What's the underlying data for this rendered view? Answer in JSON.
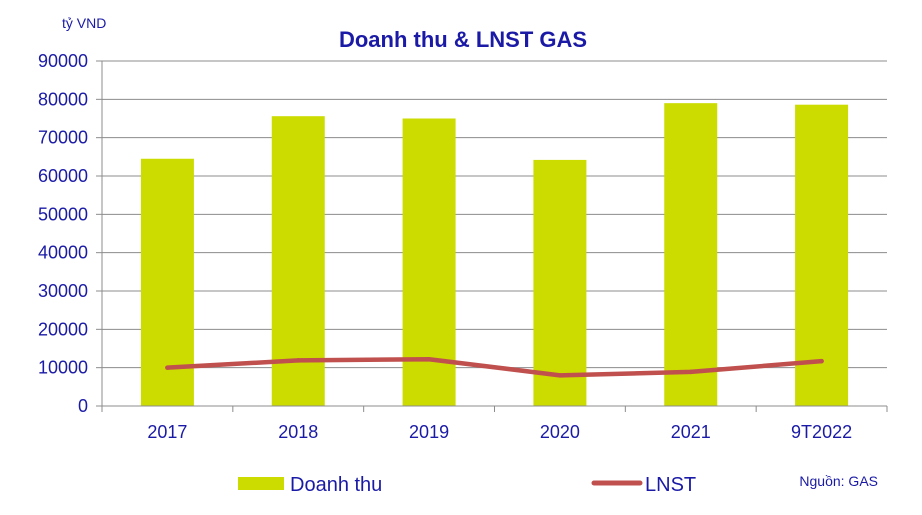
{
  "chart_data": {
    "type": "bar",
    "title": "Doanh thu & LNST GAS",
    "unit_label": "tỷ VND",
    "source": "Nguồn: GAS",
    "categories": [
      "2017",
      "2018",
      "2019",
      "2020",
      "2021",
      "9T2022"
    ],
    "ylim": [
      0,
      90000
    ],
    "yticks": [
      "0",
      "10000",
      "20000",
      "30000",
      "40000",
      "50000",
      "60000",
      "70000",
      "80000",
      "90000"
    ],
    "grid": true,
    "legend_position": "bottom",
    "series": [
      {
        "name": "Doanh thu",
        "type": "bar",
        "color": "#ccdb00",
        "values": [
          64500,
          75600,
          75000,
          64200,
          79000,
          78600
        ]
      },
      {
        "name": "LNST",
        "type": "line",
        "color": "#c0504d",
        "values": [
          10000,
          11900,
          12200,
          8000,
          8900,
          11700
        ]
      }
    ]
  }
}
